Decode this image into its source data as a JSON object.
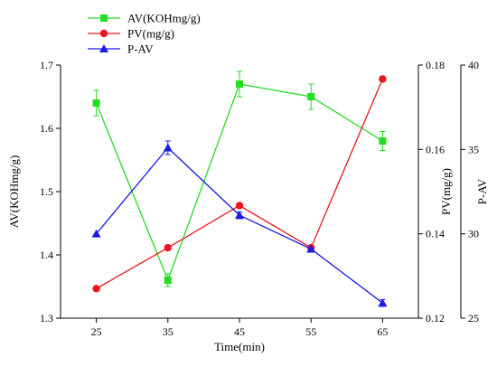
{
  "chart_data": {
    "type": "line",
    "x": [
      25,
      35,
      45,
      55,
      65
    ],
    "xticks": [
      "25",
      "35",
      "45",
      "55",
      "65"
    ],
    "xlabel": "Time(min)",
    "xlim": [
      20,
      70
    ],
    "axes": {
      "left": {
        "label": "AV(KOHmg/g)",
        "ylim": [
          1.3,
          1.7
        ],
        "ticks": [
          "1.3",
          "1.4",
          "1.5",
          "1.6",
          "1.7"
        ]
      },
      "right1": {
        "label": "PV(mg/g)",
        "ylim": [
          0.12,
          0.18
        ],
        "ticks": [
          "0.12",
          "0.14",
          "0.16",
          "0.18"
        ]
      },
      "right2": {
        "label": "P-AV",
        "ylim": [
          25,
          40
        ],
        "ticks": [
          "25",
          "30",
          "35",
          "40"
        ]
      }
    },
    "legend_position": "top-left",
    "series": [
      {
        "name": "AV(KOHmg/g)",
        "axis": "left",
        "color": "#22dd22",
        "marker": "square",
        "values": [
          1.64,
          1.36,
          1.67,
          1.65,
          1.58
        ],
        "errors": [
          0.02,
          0.01,
          0.02,
          0.02,
          0.015
        ]
      },
      {
        "name": "PV(mg/g)",
        "axis": "right1",
        "color": "#e8161d",
        "marker": "circle",
        "values": [
          0.127,
          0.1367,
          0.1467,
          0.1367,
          0.1767
        ],
        "errors": [
          0,
          0,
          0,
          0,
          0
        ]
      },
      {
        "name": "P-AV",
        "axis": "right2",
        "color": "#1a1ae6",
        "marker": "triangle",
        "values": [
          30.0,
          35.1,
          31.1,
          29.1,
          25.9
        ],
        "errors": [
          0,
          0.4,
          0.2,
          0,
          0.2
        ]
      }
    ]
  }
}
